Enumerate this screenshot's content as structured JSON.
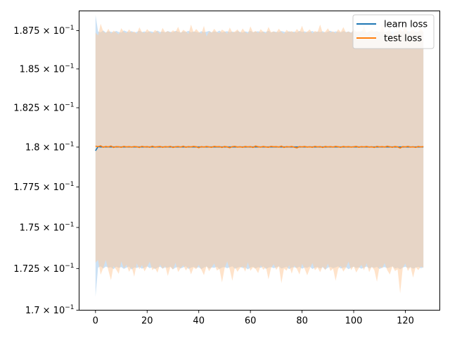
{
  "chart_data": {
    "type": "line",
    "title": "",
    "xlabel": "",
    "ylabel": "",
    "yscale": "log",
    "xlim": [
      -6.35,
      133.35
    ],
    "ylim": [
      0.17,
      0.1888
    ],
    "x_ticks": [
      0,
      20,
      40,
      60,
      80,
      100,
      120
    ],
    "y_ticks": [
      {
        "value": 0.17,
        "mantissa": "1.7"
      },
      {
        "value": 0.1725,
        "mantissa": "1.725"
      },
      {
        "value": 0.175,
        "mantissa": "1.75"
      },
      {
        "value": 0.1775,
        "mantissa": "1.775"
      },
      {
        "value": 0.18,
        "mantissa": "1.8"
      },
      {
        "value": 0.1825,
        "mantissa": "1.825"
      },
      {
        "value": 0.185,
        "mantissa": "1.85"
      },
      {
        "value": 0.1875,
        "mantissa": "1.875"
      }
    ],
    "y_tick_base": "10",
    "y_tick_exponent": "−1",
    "legend_position": "upper-right",
    "x_count": 128,
    "series": [
      {
        "name": "learn loss",
        "color": "#1f77b4",
        "band_color": "#a9cdef",
        "mean_values": [
          0.17977,
          0.18003,
          0.18001,
          0.18001,
          0.18001,
          0.18001,
          0.18001,
          0.18001,
          0.18001,
          0.18001,
          0.18001,
          0.18001,
          0.18001,
          0.18001,
          0.18001,
          0.18001,
          0.18001,
          0.18001,
          0.18001,
          0.18001,
          0.18001,
          0.18001,
          0.18001,
          0.18001,
          0.18001,
          0.18001,
          0.18001,
          0.18001,
          0.18001,
          0.18001,
          0.18001,
          0.18001,
          0.18001,
          0.18001,
          0.18001,
          0.18001,
          0.18001,
          0.18001,
          0.18001,
          0.18001,
          0.18001,
          0.18001,
          0.18001,
          0.18001,
          0.18001,
          0.18001,
          0.18001,
          0.18001,
          0.18001,
          0.18001,
          0.18001,
          0.18001,
          0.18001,
          0.18001,
          0.18001,
          0.18001,
          0.18001,
          0.18001,
          0.18001,
          0.18001,
          0.18001,
          0.18001,
          0.18001,
          0.18001,
          0.18001,
          0.18001,
          0.18001,
          0.18001,
          0.18001,
          0.18001,
          0.18001,
          0.18001,
          0.18001,
          0.18001,
          0.18001,
          0.18001,
          0.18001,
          0.18001,
          0.18001,
          0.18001,
          0.18001,
          0.18001,
          0.18001,
          0.18001,
          0.18001,
          0.18001,
          0.18001,
          0.18001,
          0.18001,
          0.18001,
          0.18001,
          0.18001,
          0.18001,
          0.18001,
          0.18001,
          0.18001,
          0.18001,
          0.18001,
          0.18001,
          0.18001,
          0.18001,
          0.18001,
          0.18001,
          0.18001,
          0.18001,
          0.18001,
          0.18001,
          0.18001,
          0.18001,
          0.18001,
          0.18001,
          0.18001,
          0.18001,
          0.18001,
          0.18001,
          0.18001,
          0.18001,
          0.18001,
          0.18001,
          0.18001,
          0.18001,
          0.18001,
          0.18001,
          0.18001,
          0.18001,
          0.18001,
          0.18001,
          0.18001
        ],
        "upper_values": [
          0.18853,
          0.18744,
          0.18739,
          0.18751,
          0.18738,
          0.18745,
          0.18743,
          0.18739,
          0.18748,
          0.18741,
          0.18737,
          0.18751,
          0.18744,
          0.1874,
          0.18747,
          0.18738,
          0.18742,
          0.18749,
          0.18741,
          0.18745,
          0.18739,
          0.18746,
          0.18743,
          0.18738,
          0.1875,
          0.18741,
          0.18744,
          0.18739,
          0.18747,
          0.18742,
          0.1874,
          0.18748,
          0.18743,
          0.18738,
          0.18745,
          0.18741,
          0.18749,
          0.18739,
          0.18744,
          0.18742,
          0.18737,
          0.18746,
          0.1874,
          0.18743,
          0.18748,
          0.18739,
          0.18745,
          0.18741,
          0.1875,
          0.18738,
          0.18743,
          0.18746,
          0.1874,
          0.18744,
          0.18739,
          0.18747,
          0.18742,
          0.18738,
          0.18745,
          0.18741,
          0.18748,
          0.1874,
          0.18743,
          0.18746,
          0.18739,
          0.18744,
          0.18741,
          0.18749,
          0.18738,
          0.18745,
          0.18742,
          0.1874,
          0.18747,
          0.18743,
          0.18739,
          0.18746,
          0.18741,
          0.18744,
          0.18738,
          0.18748,
          0.18742,
          0.18745,
          0.1874,
          0.18743,
          0.18747,
          0.18739,
          0.18744,
          0.18741,
          0.18746,
          0.18738,
          0.18743,
          0.18749,
          0.1874,
          0.18745,
          0.18742,
          0.18739,
          0.18747,
          0.18741,
          0.18744,
          0.18738,
          0.18746,
          0.18743,
          0.1874,
          0.18748,
          0.18742,
          0.18739,
          0.18745,
          0.18741,
          0.18744,
          0.18747,
          0.1874,
          0.18743,
          0.18738,
          0.18746,
          0.18742,
          0.18745,
          0.18739,
          0.18748,
          0.18741,
          0.18744,
          0.1874,
          0.18747,
          0.18743,
          0.18738,
          0.18745,
          0.18742,
          0.18746,
          0.1874
        ],
        "lower_values": [
          0.1708,
          0.17256,
          0.17263,
          0.1725,
          0.17262,
          0.17255,
          0.17258,
          0.17246,
          0.17261,
          0.17254,
          0.17259,
          0.17248,
          0.17256,
          0.17262,
          0.17244,
          0.17257,
          0.17253,
          0.1726,
          0.17249,
          0.17256,
          0.17263,
          0.17252,
          0.17258,
          0.17247,
          0.17255,
          0.17261,
          0.1725,
          0.17257,
          0.17254,
          0.17262,
          0.17245,
          0.17256,
          0.17259,
          0.17251,
          0.17257,
          0.17263,
          0.17248,
          0.17255,
          0.1726,
          0.17253,
          0.17258,
          0.17246,
          0.17256,
          0.17262,
          0.1725,
          0.17257,
          0.17254,
          0.17261,
          0.17247,
          0.17256,
          0.17259,
          0.17252,
          0.17258,
          0.17263,
          0.17249,
          0.17255,
          0.1726,
          0.17253,
          0.17257,
          0.17245,
          0.17256,
          0.17261,
          0.17251,
          0.17258,
          0.17254,
          0.17262,
          0.17248,
          0.17256,
          0.17259,
          0.17252,
          0.17257,
          0.17263,
          0.1725,
          0.17255,
          0.1726,
          0.17246,
          0.17256,
          0.17258,
          0.17253,
          0.17261,
          0.17249,
          0.17257,
          0.17254,
          0.17262,
          0.17247,
          0.17256,
          0.17259,
          0.17251,
          0.17258,
          0.17244,
          0.17255,
          0.1726,
          0.17252,
          0.17257,
          0.17263,
          0.1725,
          0.17256,
          0.17258,
          0.17246,
          0.17255,
          0.17261,
          0.17253,
          0.17257,
          0.17249,
          0.17256,
          0.17262,
          0.17251,
          0.17258,
          0.17254,
          0.1726,
          0.17247,
          0.17256,
          0.17259,
          0.17252,
          0.17257,
          0.17263,
          0.1725,
          0.17255,
          0.17245,
          0.17256,
          0.17261,
          0.17253,
          0.17258,
          0.17249,
          0.17256,
          0.1726,
          0.17252,
          0.17257
        ]
      },
      {
        "name": "test loss",
        "color": "#ff7f0e",
        "band_color": "#ffcc9e",
        "mean_values": [
          0.18006,
          0.18003,
          0.18008,
          0.17999,
          0.18004,
          0.18001,
          0.18007,
          0.17998,
          0.18003,
          0.18002,
          0.17999,
          0.18005,
          0.18001,
          0.18003,
          0.18,
          0.18004,
          0.18002,
          0.17998,
          0.18005,
          0.18001,
          0.18003,
          0.17999,
          0.18006,
          0.18,
          0.18002,
          0.18004,
          0.17999,
          0.18003,
          0.18001,
          0.18005,
          0.17998,
          0.18002,
          0.18004,
          0.18,
          0.18006,
          0.17999,
          0.18003,
          0.18001,
          0.18005,
          0.18002,
          0.17996,
          0.18003,
          0.18,
          0.18004,
          0.18001,
          0.17999,
          0.18005,
          0.18002,
          0.18003,
          0.17998,
          0.18004,
          0.18001,
          0.17996,
          0.18003,
          0.18005,
          0.18,
          0.18002,
          0.17999,
          0.18004,
          0.18001,
          0.18003,
          0.17998,
          0.18007,
          0.18002,
          0.18,
          0.18004,
          0.18001,
          0.17999,
          0.18005,
          0.18002,
          0.18003,
          0.18,
          0.18006,
          0.17998,
          0.18003,
          0.18001,
          0.18004,
          0.17999,
          0.17995,
          0.18003,
          0.18001,
          0.18004,
          0.18,
          0.18002,
          0.17999,
          0.18005,
          0.18001,
          0.18003,
          0.17998,
          0.18004,
          0.18001,
          0.18003,
          0.18,
          0.18005,
          0.18002,
          0.17999,
          0.18004,
          0.18001,
          0.18003,
          0.18,
          0.18002,
          0.18005,
          0.17999,
          0.18003,
          0.18001,
          0.18004,
          0.18,
          0.18002,
          0.17998,
          0.18005,
          0.18001,
          0.18003,
          0.18,
          0.18006,
          0.18002,
          0.17999,
          0.18004,
          0.18001,
          0.17994,
          0.18003,
          0.18001,
          0.18005,
          0.18,
          0.18002,
          0.17998,
          0.18004,
          0.18001,
          0.18003
        ],
        "upper_values": [
          0.18737,
          0.18718,
          0.18795,
          0.18745,
          0.18733,
          0.18762,
          0.1873,
          0.1875,
          0.18739,
          0.18725,
          0.18766,
          0.18741,
          0.18733,
          0.18758,
          0.18738,
          0.18745,
          0.18729,
          0.18772,
          0.1874,
          0.18735,
          0.1876,
          0.18742,
          0.18731,
          0.18754,
          0.18745,
          0.18727,
          0.18768,
          0.18739,
          0.18747,
          0.18736,
          0.18752,
          0.18741,
          0.18775,
          0.18733,
          0.18756,
          0.18744,
          0.18728,
          0.1879,
          0.18738,
          0.18761,
          0.18742,
          0.1873,
          0.18781,
          0.18711,
          0.18744,
          0.18737,
          0.18762,
          0.1874,
          0.18733,
          0.18757,
          0.18746,
          0.18729,
          0.1877,
          0.18738,
          0.18744,
          0.18758,
          0.18734,
          0.18764,
          0.18741,
          0.1873,
          0.18778,
          0.18739,
          0.18748,
          0.18733,
          0.18759,
          0.18742,
          0.18731,
          0.18774,
          0.1874,
          0.18745,
          0.18736,
          0.18763,
          0.18742,
          0.18729,
          0.18755,
          0.18741,
          0.18747,
          0.18735,
          0.18761,
          0.1874,
          0.18782,
          0.18733,
          0.18744,
          0.18758,
          0.18731,
          0.18748,
          0.1874,
          0.1879,
          0.18735,
          0.18743,
          0.18765,
          0.18738,
          0.18746,
          0.18732,
          0.18759,
          0.18741,
          0.18773,
          0.18737,
          0.18745,
          0.18733,
          0.18762,
          0.1874,
          0.18748,
          0.18735,
          0.18781,
          0.18731,
          0.18744,
          0.18757,
          0.18739,
          0.18746,
          0.18733,
          0.18792,
          0.18739,
          0.18744,
          0.1876,
          0.18712,
          0.18745,
          0.18738,
          0.18763,
          0.18741,
          0.18784,
          0.18734,
          0.18746,
          0.18759,
          0.18738,
          0.18743,
          0.18766,
          0.1874
        ],
        "lower_values": [
          0.17286,
          0.17302,
          0.17212,
          0.17254,
          0.17302,
          0.17237,
          0.1718,
          0.17266,
          0.17244,
          0.17218,
          0.17294,
          0.17251,
          0.17274,
          0.1723,
          0.17259,
          0.17201,
          0.17282,
          0.17246,
          0.17271,
          0.17233,
          0.1726,
          0.17291,
          0.1724,
          0.17254,
          0.17225,
          0.17275,
          0.17248,
          0.17266,
          0.17205,
          0.1726,
          0.17243,
          0.17285,
          0.17229,
          0.17253,
          0.1727,
          0.17238,
          0.17261,
          0.17215,
          0.17256,
          0.17246,
          0.17272,
          0.17243,
          0.1721,
          0.17266,
          0.17234,
          0.17258,
          0.17281,
          0.17238,
          0.17247,
          0.17166,
          0.17251,
          0.17293,
          0.17244,
          0.17176,
          0.1726,
          0.1723,
          0.17254,
          0.17263,
          0.17231,
          0.17288,
          0.17236,
          0.17257,
          0.17248,
          0.17222,
          0.1727,
          0.17242,
          0.17259,
          0.17185,
          0.17253,
          0.17276,
          0.17242,
          0.17265,
          0.17161,
          0.1725,
          0.17237,
          0.1727,
          0.17219,
          0.17269,
          0.17247,
          0.17214,
          0.17278,
          0.17249,
          0.17209,
          0.1725,
          0.17283,
          0.17239,
          0.17257,
          0.17228,
          0.17263,
          0.1724,
          0.1728,
          0.17235,
          0.1725,
          0.17176,
          0.17249,
          0.17266,
          0.17231,
          0.17255,
          0.17292,
          0.1724,
          0.17264,
          0.17226,
          0.17253,
          0.17272,
          0.1724,
          0.17283,
          0.17228,
          0.17262,
          0.1724,
          0.1717,
          0.17262,
          0.17251,
          0.17283,
          0.1724,
          0.17214,
          0.17264,
          0.17235,
          0.17245,
          0.171,
          0.17254,
          0.1728,
          0.17235,
          0.1726,
          0.17195,
          0.17259,
          0.1724,
          0.17262,
          0.17255
        ]
      }
    ]
  }
}
